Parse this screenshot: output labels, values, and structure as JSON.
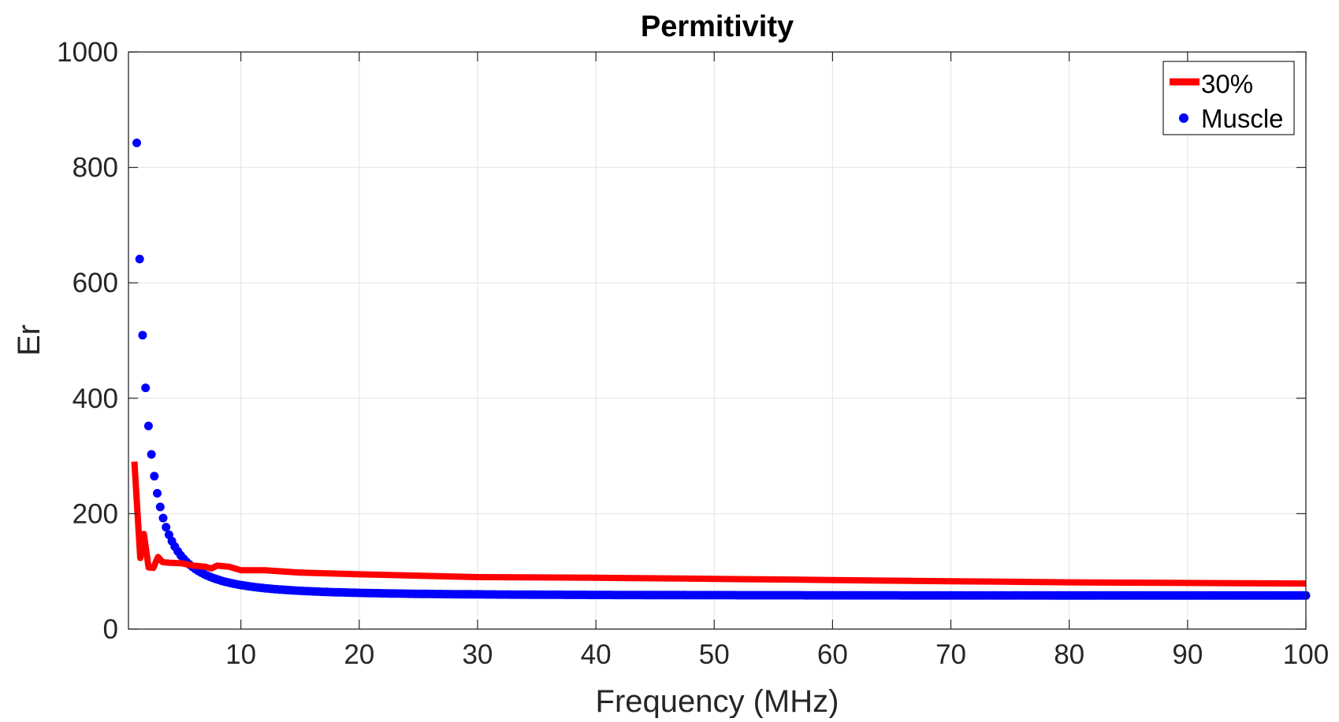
{
  "chart_data": {
    "type": "line",
    "title": "Permitivity",
    "xlabel": "Frequency (MHz)",
    "ylabel": "Er",
    "xlim": [
      0.5,
      100
    ],
    "ylim": [
      0,
      1000
    ],
    "x_ticks": [
      10,
      20,
      30,
      40,
      50,
      60,
      70,
      80,
      90,
      100
    ],
    "y_ticks": [
      0,
      200,
      400,
      600,
      800,
      1000
    ],
    "x_tick_labels": [
      "10",
      "20",
      "30",
      "40",
      "50",
      "60",
      "70",
      "80",
      "90",
      "100"
    ],
    "y_tick_labels": [
      "0",
      "200",
      "400",
      "600",
      "800",
      "1000"
    ],
    "grid": true,
    "legend_position": "top-right",
    "series": [
      {
        "name": "30%",
        "style": "line",
        "color": "#ff0000",
        "x": [
          1,
          1.5,
          1.8,
          2.2,
          2.6,
          3.0,
          3.4,
          4,
          5,
          6,
          7,
          7.5,
          8,
          9,
          10,
          12,
          15,
          20,
          30,
          40,
          50,
          60,
          70,
          80,
          90,
          100
        ],
        "y": [
          290,
          123,
          165,
          107,
          106,
          125,
          116,
          115,
          114,
          110,
          108,
          105,
          110,
          108,
          102,
          102,
          98,
          95,
          90,
          89,
          87,
          85,
          83,
          81,
          80,
          79
        ]
      },
      {
        "name": "Muscle",
        "style": "markers",
        "color": "#0000ff",
        "model": "er = 84000/(42*f^2 + 38*f + 1) + 58",
        "x_range": [
          1.2,
          100
        ],
        "num_points": 400
      }
    ]
  }
}
